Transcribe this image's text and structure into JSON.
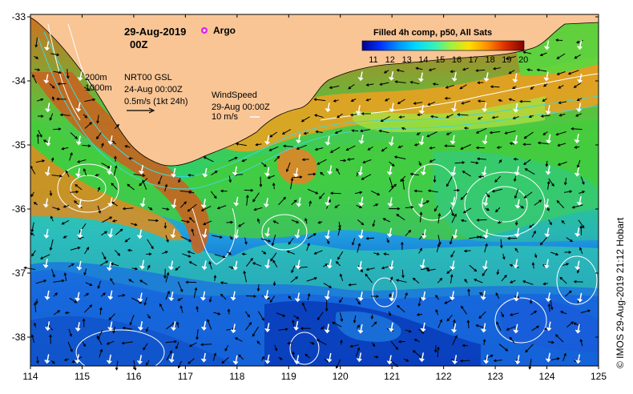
{
  "map": {
    "date": "29-Aug-2019",
    "time": "00Z",
    "argo_label": "Argo",
    "depth_200": "200m",
    "depth_1000": "1000m",
    "current_product": "NRT00 GSL",
    "current_time": "24-Aug 00:00Z",
    "current_scale": "0.5m/s (1kt 24h)",
    "wind_title": "WindSpeed",
    "wind_time": "29-Aug 00:00Z",
    "wind_scale": "10 m/s",
    "colorbar_title": "Filled 4h comp, p50, All Sats",
    "colorbar_ticks": [
      "11",
      "12",
      "13",
      "14",
      "15",
      "16",
      "17",
      "18",
      "19",
      "20"
    ],
    "credit": "© IMOS 29-Aug-2019 21:12 Hobart",
    "x_ticks": [
      "114",
      "115",
      "116",
      "117",
      "118",
      "119",
      "120",
      "121",
      "122",
      "123",
      "124",
      "125"
    ],
    "y_ticks": [
      "-33",
      "-34",
      "-35",
      "-36",
      "-37",
      "-38"
    ],
    "colors": {
      "land": "#f9c595",
      "contour": "#ffffff",
      "bathymetry": "#40d8d8",
      "argo": "#e020e0"
    }
  }
}
